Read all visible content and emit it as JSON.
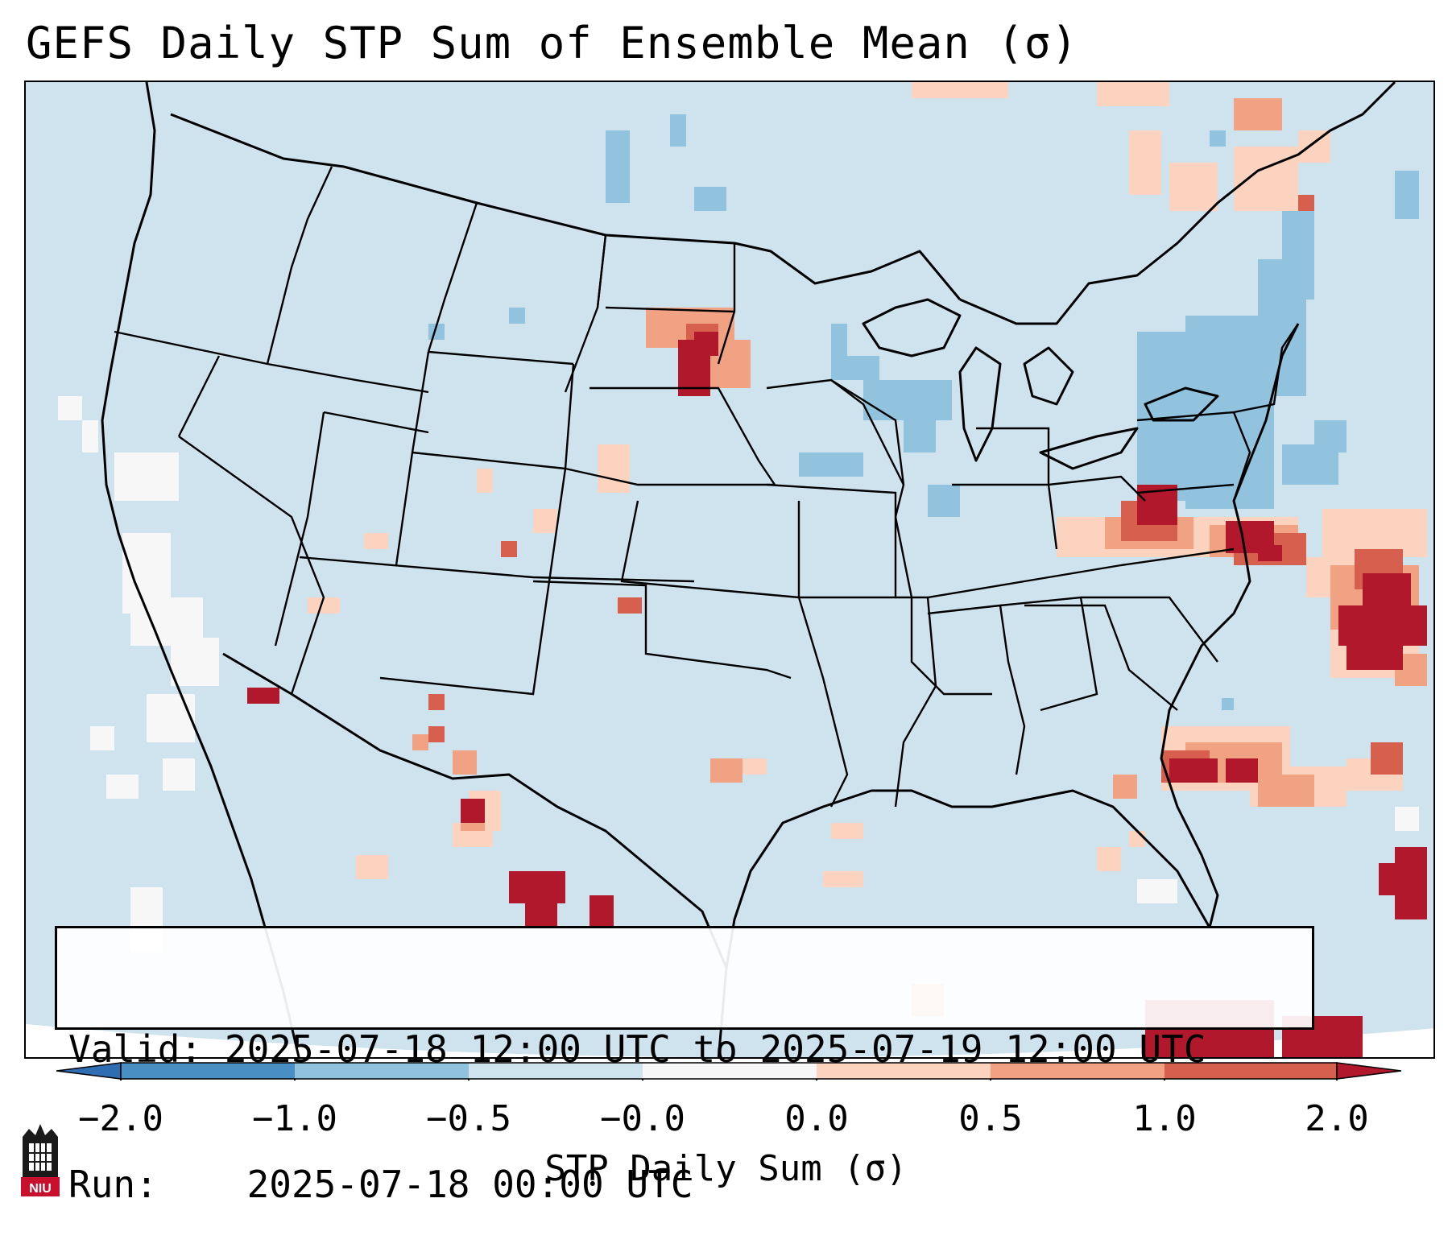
{
  "title": "GEFS Daily STP Sum of Ensemble Mean (σ)",
  "info": {
    "valid_label": "Valid:",
    "valid_value": "2025-07-18 12:00 UTC to 2025-07-19 12:00 UTC",
    "run_label": "Run:",
    "run_value": "2025-07-18 00:00 UTC"
  },
  "colorbar": {
    "label": "STP Daily Sum (σ)",
    "ticks": [
      "−2.0",
      "−1.0",
      "−0.5",
      "−0.0",
      "0.0",
      "0.5",
      "1.0",
      "2.0"
    ],
    "bins": [
      {
        "range": "< -2.0",
        "color": "#2f6db3"
      },
      {
        "range": "-2.0 to -1.0",
        "color": "#4a8fc4"
      },
      {
        "range": "-1.0 to -0.5",
        "color": "#91c3df"
      },
      {
        "range": "-0.5 to -0.0",
        "color": "#cfe3ef"
      },
      {
        "range": "-0.0 to 0.0",
        "color": "#f7f7f7"
      },
      {
        "range": "0.0 to 0.5",
        "color": "#fbd3bf"
      },
      {
        "range": "0.5 to 1.0",
        "color": "#f0a283"
      },
      {
        "range": "1.0 to 2.0",
        "color": "#d6604d"
      },
      {
        "range": "> 2.0",
        "color": "#b2182b"
      }
    ]
  },
  "map": {
    "region": "Continental United States",
    "field": "STP daily sum anomaly",
    "units": "σ"
  },
  "logo": {
    "text": "NIU",
    "colors": {
      "red": "#c8102e",
      "black": "#1a1a1a"
    }
  }
}
